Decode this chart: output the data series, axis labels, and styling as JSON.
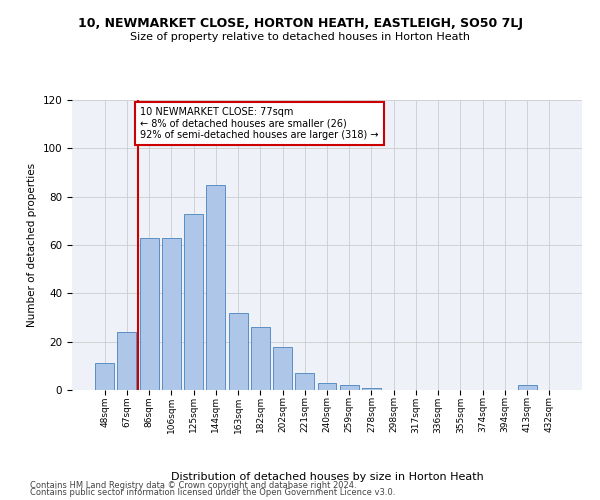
{
  "title": "10, NEWMARKET CLOSE, HORTON HEATH, EASTLEIGH, SO50 7LJ",
  "subtitle": "Size of property relative to detached houses in Horton Heath",
  "xlabel": "Distribution of detached houses by size in Horton Heath",
  "ylabel": "Number of detached properties",
  "categories": [
    "48sqm",
    "67sqm",
    "86sqm",
    "106sqm",
    "125sqm",
    "144sqm",
    "163sqm",
    "182sqm",
    "202sqm",
    "221sqm",
    "240sqm",
    "259sqm",
    "278sqm",
    "298sqm",
    "317sqm",
    "336sqm",
    "355sqm",
    "374sqm",
    "394sqm",
    "413sqm",
    "432sqm"
  ],
  "values": [
    11,
    24,
    63,
    63,
    73,
    85,
    32,
    26,
    18,
    7,
    3,
    2,
    1,
    0,
    0,
    0,
    0,
    0,
    0,
    2,
    0
  ],
  "bar_color": "#aec6e8",
  "bar_edge_color": "#5a8fc4",
  "property_line_x": 1.5,
  "annotation_text": "10 NEWMARKET CLOSE: 77sqm\n← 8% of detached houses are smaller (26)\n92% of semi-detached houses are larger (318) →",
  "annotation_box_color": "#ffffff",
  "annotation_box_edge": "#cc0000",
  "vline_color": "#cc0000",
  "ylim": [
    0,
    120
  ],
  "yticks": [
    0,
    20,
    40,
    60,
    80,
    100,
    120
  ],
  "grid_color": "#cccccc",
  "background_color": "#eef2f8",
  "footer1": "Contains HM Land Registry data © Crown copyright and database right 2024.",
  "footer2": "Contains public sector information licensed under the Open Government Licence v3.0."
}
